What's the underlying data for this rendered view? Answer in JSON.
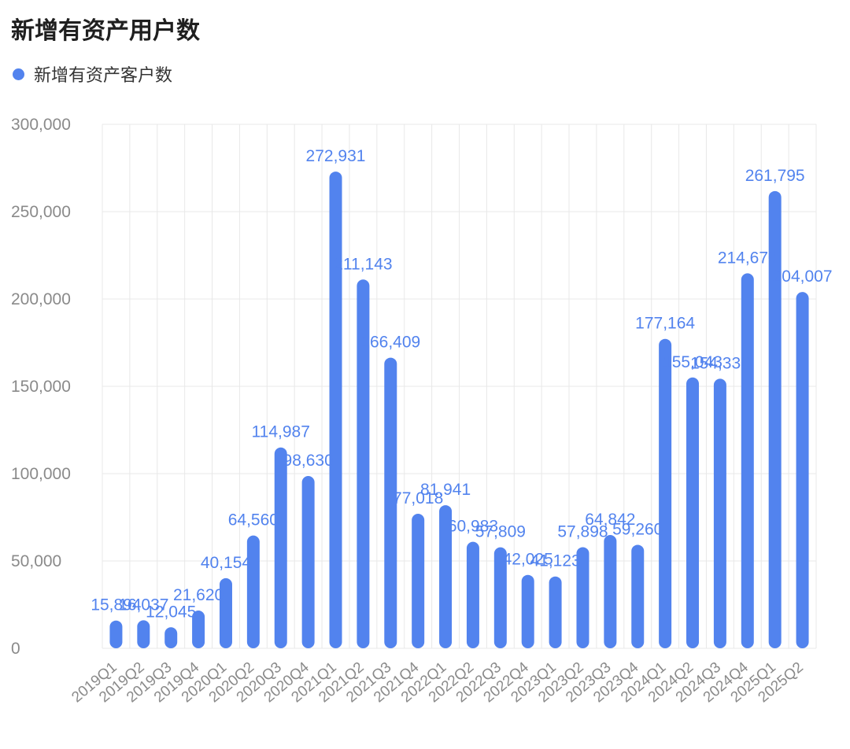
{
  "title": "新增有资产用户数",
  "legend": {
    "label": "新增有资产客户数"
  },
  "colors": {
    "bar": "#5283EE",
    "label": "#5283EE"
  },
  "chart_data": {
    "type": "bar",
    "title": "新增有资产用户数",
    "xlabel": "",
    "ylabel": "",
    "ylim": [
      0,
      300000
    ],
    "yticks": [
      0,
      50000,
      100000,
      150000,
      200000,
      250000,
      300000
    ],
    "ytick_labels": [
      "0",
      "50,000",
      "100,000",
      "150,000",
      "200,000",
      "250,000",
      "300,000"
    ],
    "grid": true,
    "legend_position": "top-left",
    "categories": [
      "2019Q1",
      "2019Q2",
      "2019Q3",
      "2019Q4",
      "2020Q1",
      "2020Q2",
      "2020Q3",
      "2020Q4",
      "2021Q1",
      "2021Q2",
      "2021Q3",
      "2021Q4",
      "2022Q1",
      "2022Q2",
      "2022Q3",
      "2022Q4",
      "2023Q1",
      "2023Q2",
      "2023Q3",
      "2023Q4",
      "2024Q1",
      "2024Q2",
      "2024Q3",
      "2024Q4",
      "2025Q1",
      "2025Q2"
    ],
    "series": [
      {
        "name": "新增有资产客户数",
        "values": [
          15894,
          16037,
          12045,
          21620,
          40154,
          64560,
          114987,
          98630,
          272931,
          211143,
          166409,
          77018,
          81941,
          60983,
          57809,
          42025,
          41123,
          57898,
          64842,
          59260,
          177164,
          155043,
          154330,
          214670,
          261795,
          204007
        ],
        "data_labels": [
          "15,894",
          "16,037",
          "12,045",
          "21,620",
          "40,154",
          "64,560",
          "114,987",
          "98,630",
          "272,931",
          "211,143",
          "166,409",
          "77,018",
          "81,941",
          "60,983",
          "57,809",
          "42,025",
          "41,123",
          "57,898",
          "64,842",
          "59,260",
          "177,164",
          "155,043",
          "154,330",
          "214,670",
          "261,795",
          "204,007"
        ]
      }
    ]
  }
}
